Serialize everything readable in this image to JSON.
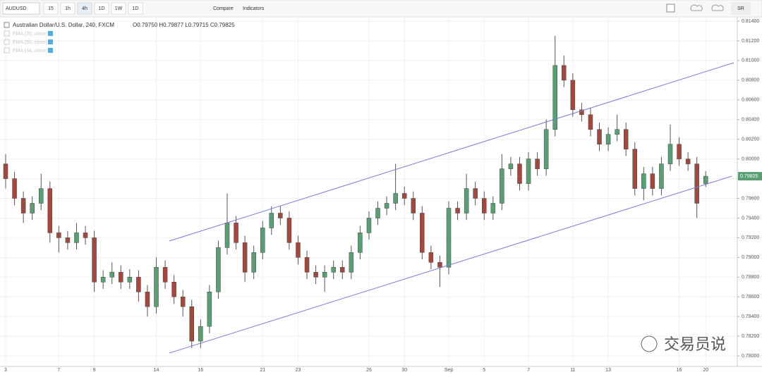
{
  "toolbar": {
    "symbol": "AUDUSD",
    "intervals": [
      "15",
      "1h",
      "4h",
      "1D",
      "1W",
      "1D"
    ],
    "compare": "Compare",
    "indicators": "Indicators",
    "sr": "SR"
  },
  "watermark": "交易员说",
  "chart_data": {
    "type": "candlestick",
    "title": "Australian Dollar/U.S. Dollar, 240, FXCM",
    "ohlc_legend": "O0.79750 H0.79877 L0.79715 C0.79825",
    "indicators": [
      "EMA (20, close)",
      "EMA (50, close)",
      "EMA (34, close)"
    ],
    "last_price_label": "0.79825",
    "up_color": "#5a9e74",
    "down_color": "#a3483f",
    "grid": true,
    "categories": [
      "3",
      null,
      null,
      null,
      null,
      null,
      "7",
      null,
      null,
      null,
      "9",
      null,
      null,
      null,
      null,
      null,
      null,
      "14",
      null,
      null,
      null,
      null,
      "16",
      null,
      null,
      null,
      null,
      null,
      null,
      "21",
      null,
      null,
      null,
      "23",
      null,
      null,
      null,
      null,
      null,
      null,
      null,
      "26",
      null,
      null,
      null,
      "30",
      null,
      null,
      null,
      null,
      "Sep",
      null,
      null,
      null,
      "5",
      null,
      null,
      null,
      null,
      "7",
      null,
      null,
      null,
      null,
      "11",
      null,
      null,
      null,
      "13",
      null,
      null,
      null,
      null,
      null,
      null,
      null,
      "16",
      null,
      null,
      "20"
    ],
    "open": [
      0.7995,
      0.798,
      0.796,
      0.7945,
      0.7955,
      0.797,
      0.7925,
      0.792,
      0.7915,
      0.7925,
      0.792,
      0.7875,
      0.788,
      0.7885,
      0.7875,
      0.788,
      0.7865,
      0.785,
      0.789,
      0.7875,
      0.786,
      0.785,
      0.7815,
      0.783,
      0.7865,
      0.791,
      0.7935,
      0.7915,
      0.7885,
      0.7905,
      0.793,
      0.7945,
      0.794,
      0.7915,
      0.79,
      0.7885,
      0.788,
      0.7885,
      0.789,
      0.7885,
      0.7905,
      0.7925,
      0.794,
      0.795,
      0.7955,
      0.7965,
      0.796,
      0.7945,
      0.7905,
      0.7895,
      0.789,
      0.795,
      0.7945,
      0.797,
      0.796,
      0.7945,
      0.7955,
      0.799,
      0.7995,
      0.7975,
      0.8,
      0.799,
      0.803,
      0.8095,
      0.808,
      0.805,
      0.8045,
      0.803,
      0.8015,
      0.8025,
      0.803,
      0.801,
      0.797,
      0.7985,
      0.797,
      0.7995,
      0.8015,
      0.8,
      0.7995,
      0.7975
    ],
    "high": [
      0.8005,
      0.7987,
      0.7967,
      0.7962,
      0.7985,
      0.7977,
      0.7932,
      0.7927,
      0.7935,
      0.7932,
      0.7927,
      0.7887,
      0.7895,
      0.7892,
      0.7888,
      0.7887,
      0.7872,
      0.79,
      0.7897,
      0.7882,
      0.7867,
      0.7857,
      0.7837,
      0.7872,
      0.7917,
      0.7965,
      0.7942,
      0.7922,
      0.7912,
      0.7937,
      0.7952,
      0.7952,
      0.7947,
      0.7922,
      0.7907,
      0.7892,
      0.7892,
      0.7897,
      0.7897,
      0.7912,
      0.7932,
      0.7947,
      0.7957,
      0.7962,
      0.7995,
      0.7972,
      0.7967,
      0.7952,
      0.7912,
      0.7902,
      0.7957,
      0.7957,
      0.7985,
      0.7977,
      0.7967,
      0.7962,
      0.8005,
      0.8002,
      0.8002,
      0.8007,
      0.8007,
      0.804,
      0.8125,
      0.8105,
      0.8087,
      0.8057,
      0.8052,
      0.8037,
      0.8032,
      0.8045,
      0.8037,
      0.8017,
      0.7992,
      0.7992,
      0.8002,
      0.8035,
      0.8022,
      0.8007,
      0.8002,
      0.79877
    ],
    "low": [
      0.797,
      0.7953,
      0.7935,
      0.7938,
      0.7948,
      0.7915,
      0.7905,
      0.7908,
      0.7908,
      0.7913,
      0.7865,
      0.7868,
      0.7873,
      0.7868,
      0.7868,
      0.7855,
      0.784,
      0.7843,
      0.7868,
      0.7853,
      0.784,
      0.7808,
      0.7808,
      0.7823,
      0.7858,
      0.7903,
      0.7908,
      0.7875,
      0.7878,
      0.7898,
      0.7923,
      0.7933,
      0.7908,
      0.7893,
      0.7878,
      0.7873,
      0.7865,
      0.7878,
      0.7878,
      0.7878,
      0.7898,
      0.7918,
      0.7933,
      0.7943,
      0.7948,
      0.7953,
      0.7938,
      0.7898,
      0.7888,
      0.787,
      0.7883,
      0.7938,
      0.7938,
      0.7953,
      0.7938,
      0.7938,
      0.7948,
      0.7983,
      0.7968,
      0.7968,
      0.7983,
      0.7983,
      0.8023,
      0.8073,
      0.8043,
      0.8038,
      0.8023,
      0.8008,
      0.8008,
      0.8018,
      0.8003,
      0.7963,
      0.7958,
      0.7963,
      0.7963,
      0.7988,
      0.7993,
      0.7988,
      0.794,
      0.79715
    ],
    "close": [
      0.798,
      0.796,
      0.7945,
      0.7955,
      0.797,
      0.7925,
      0.792,
      0.7915,
      0.7925,
      0.792,
      0.7875,
      0.788,
      0.7885,
      0.7875,
      0.788,
      0.7865,
      0.785,
      0.789,
      0.7875,
      0.786,
      0.785,
      0.7815,
      0.783,
      0.7865,
      0.791,
      0.7935,
      0.7915,
      0.7885,
      0.7905,
      0.793,
      0.7945,
      0.794,
      0.7915,
      0.79,
      0.7885,
      0.788,
      0.7885,
      0.789,
      0.7885,
      0.7905,
      0.7925,
      0.794,
      0.795,
      0.7955,
      0.7965,
      0.796,
      0.7945,
      0.7905,
      0.7895,
      0.789,
      0.795,
      0.7945,
      0.797,
      0.796,
      0.7945,
      0.7955,
      0.799,
      0.7995,
      0.7975,
      0.8,
      0.799,
      0.803,
      0.8095,
      0.808,
      0.805,
      0.8045,
      0.803,
      0.8015,
      0.8025,
      0.803,
      0.801,
      0.797,
      0.7985,
      0.797,
      0.7995,
      0.8015,
      0.8,
      0.7995,
      0.7955,
      0.79825
    ],
    "ylim": [
      0.77893,
      0.81443
    ],
    "yticks": [
      {
        "value": 0.814,
        "label": "0.81400"
      },
      {
        "value": 0.812,
        "label": "0.81200"
      },
      {
        "value": 0.81,
        "label": "0.81000"
      },
      {
        "value": 0.808,
        "label": "0.80800"
      },
      {
        "value": 0.806,
        "label": "0.80600"
      },
      {
        "value": 0.804,
        "label": "0.80400"
      },
      {
        "value": 0.802,
        "label": "0.80200"
      },
      {
        "value": 0.8,
        "label": "0.80000"
      },
      {
        "value": 0.798,
        "label": "0.79800"
      },
      {
        "value": 0.796,
        "label": "0.79600"
      },
      {
        "value": 0.794,
        "label": "0.79400"
      },
      {
        "value": 0.792,
        "label": "0.79200"
      },
      {
        "value": 0.79,
        "label": "0.79000"
      },
      {
        "value": 0.788,
        "label": "0.78800"
      },
      {
        "value": 0.786,
        "label": "0.78600"
      },
      {
        "value": 0.784,
        "label": "0.78400"
      },
      {
        "value": 0.782,
        "label": "0.78200"
      },
      {
        "value": 0.78,
        "label": "0.78000"
      }
    ]
  }
}
